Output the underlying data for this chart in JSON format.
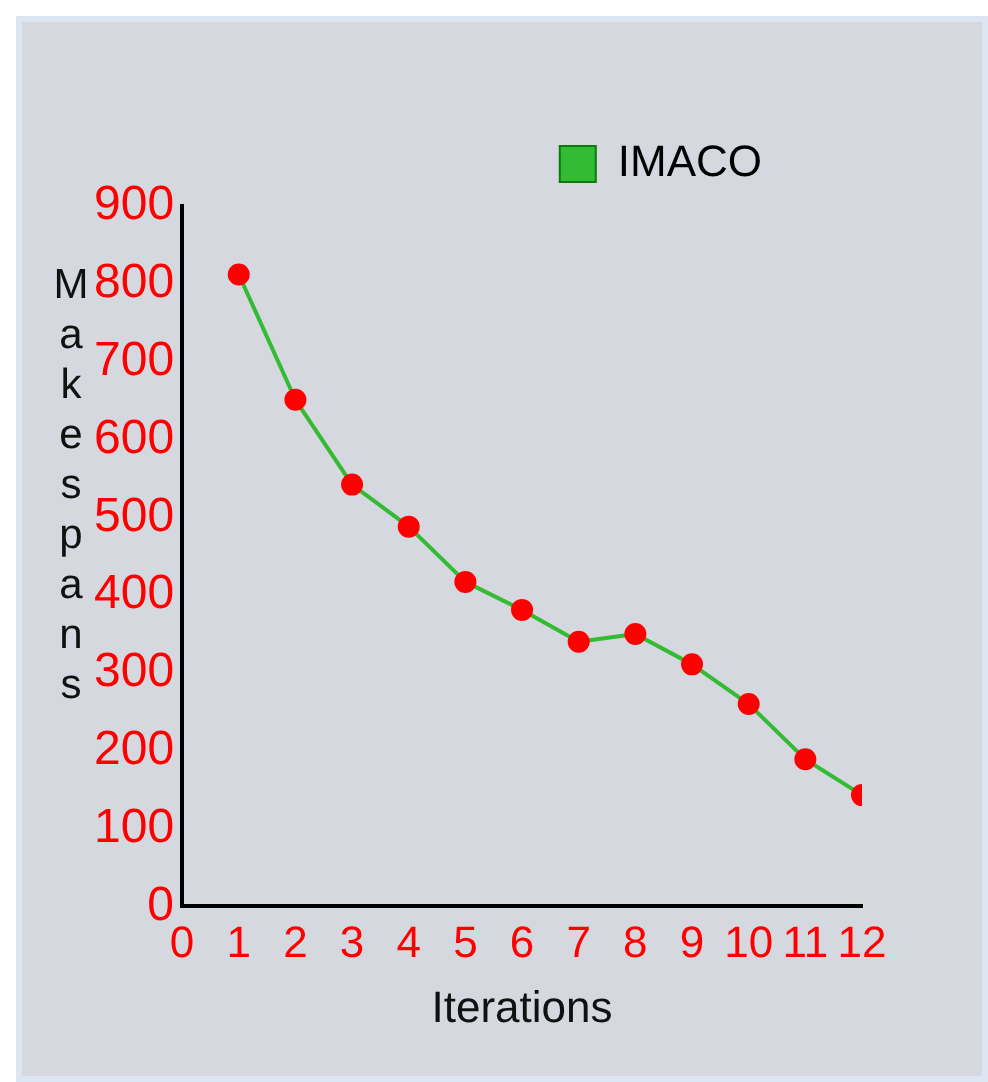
{
  "chart_data": {
    "type": "line",
    "xlabel": "Iterations",
    "ylabel": "Makespans",
    "x": [
      1,
      2,
      3,
      4,
      5,
      6,
      7,
      8,
      9,
      10,
      11,
      12
    ],
    "series": [
      {
        "name": "IMACO",
        "color": "#33bb33",
        "values": [
          812,
          651,
          542,
          488,
          417,
          381,
          340,
          350,
          311,
          260,
          189,
          143
        ]
      }
    ],
    "xlim": [
      0,
      12
    ],
    "xticks": [
      0,
      1,
      2,
      3,
      4,
      5,
      6,
      7,
      8,
      9,
      10,
      11,
      12
    ],
    "ylim": [
      0,
      900
    ],
    "yticks": [
      0,
      100,
      200,
      300,
      400,
      500,
      600,
      700,
      800,
      900
    ],
    "grid": false,
    "legend": "top right",
    "marker": "circle",
    "line_style": "solid"
  }
}
